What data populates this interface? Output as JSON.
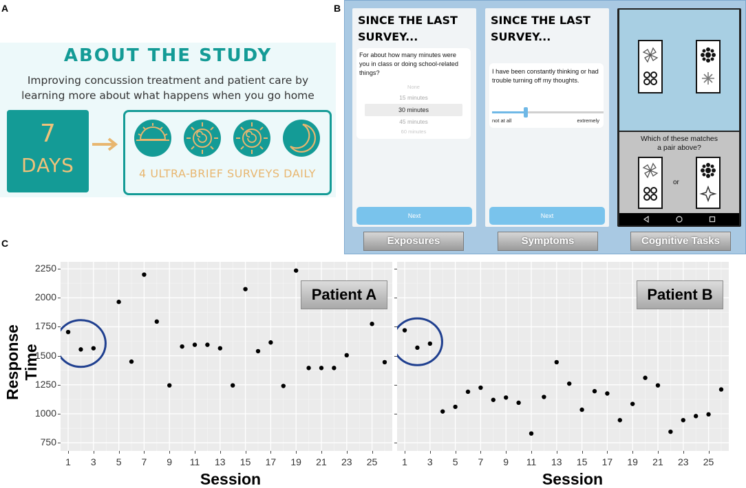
{
  "panel_letters": {
    "a": "A",
    "b": "B",
    "c": "C"
  },
  "panel_a": {
    "title": "ABOUT THE STUDY",
    "subtitle_line1": "Improving concussion treatment and patient care by",
    "subtitle_line2": "learning more about what happens when you go home",
    "days_number": "7",
    "days_word": "DAYS",
    "surveys_label": "4 ULTRA-BRIEF SURVEYS DAILY",
    "icons": [
      "sunrise-icon",
      "sun-icon",
      "sun-icon",
      "moon-icon"
    ],
    "colors": {
      "teal": "#149b96",
      "gold": "#e8b66f",
      "background": "#edf9fa"
    }
  },
  "panel_b": {
    "exposures_screen": {
      "heading_line1": "SINCE THE LAST",
      "heading_line2": "SURVEY...",
      "question": "For about how many minutes were you in class or doing school-related things?",
      "picker_options": [
        "None",
        "15 minutes",
        "30 minutes",
        "45 minutes",
        "60 minutes"
      ],
      "selected_option": "30 minutes",
      "next_label": "Next"
    },
    "symptoms_screen": {
      "heading_line1": "SINCE THE LAST",
      "heading_line2": "SURVEY...",
      "question": "I have been constantly thinking or had trouble turning off my thoughts.",
      "slider_min_label": "not at all",
      "slider_max_label": "extremely",
      "slider_value": 0.3,
      "next_label": "Next"
    },
    "cognitive_screen": {
      "question_line1": "Which of these matches",
      "question_line2": "a pair above?",
      "or_label": "or"
    },
    "labels": {
      "exposures": "Exposures",
      "symptoms": "Symptoms",
      "cognitive": "Cognitive Tasks"
    }
  },
  "chart_data": [
    {
      "type": "scatter",
      "title": "Patient A",
      "xlabel": "Session",
      "ylabel": "Response Time",
      "x_ticks": [
        1,
        3,
        5,
        7,
        9,
        11,
        13,
        15,
        17,
        19,
        21,
        23,
        25
      ],
      "y_ticks": [
        750,
        1000,
        1250,
        1500,
        1750,
        2000,
        2250
      ],
      "ylim": [
        680,
        2310
      ],
      "xlim": [
        0.4,
        26.6
      ],
      "grid": true,
      "points": [
        {
          "x": 1,
          "y": 1705
        },
        {
          "x": 2,
          "y": 1555
        },
        {
          "x": 3,
          "y": 1565
        },
        {
          "x": 5,
          "y": 1965
        },
        {
          "x": 6,
          "y": 1450
        },
        {
          "x": 7,
          "y": 2200
        },
        {
          "x": 8,
          "y": 1795
        },
        {
          "x": 9,
          "y": 1245
        },
        {
          "x": 10,
          "y": 1580
        },
        {
          "x": 11,
          "y": 1595
        },
        {
          "x": 12,
          "y": 1595
        },
        {
          "x": 13,
          "y": 1565
        },
        {
          "x": 14,
          "y": 1245
        },
        {
          "x": 15,
          "y": 2075
        },
        {
          "x": 16,
          "y": 1540
        },
        {
          "x": 17,
          "y": 1615
        },
        {
          "x": 18,
          "y": 1240
        },
        {
          "x": 19,
          "y": 2235
        },
        {
          "x": 20,
          "y": 1395
        },
        {
          "x": 21,
          "y": 1395
        },
        {
          "x": 22,
          "y": 1395
        },
        {
          "x": 23,
          "y": 1505
        },
        {
          "x": 25,
          "y": 1775
        },
        {
          "x": 26,
          "y": 1445
        }
      ],
      "highlight_sessions": [
        1,
        2,
        3
      ]
    },
    {
      "type": "scatter",
      "title": "Patient B",
      "xlabel": "Session",
      "ylabel": "",
      "x_ticks": [
        1,
        3,
        5,
        7,
        9,
        11,
        13,
        15,
        17,
        19,
        21,
        23,
        25
      ],
      "y_ticks": [
        750,
        1000,
        1250,
        1500,
        1750,
        2000,
        2250
      ],
      "ylim": [
        680,
        2310
      ],
      "xlim": [
        0.4,
        26.6
      ],
      "grid": true,
      "points": [
        {
          "x": 1,
          "y": 1720
        },
        {
          "x": 2,
          "y": 1570
        },
        {
          "x": 3,
          "y": 1605
        },
        {
          "x": 4,
          "y": 1020
        },
        {
          "x": 5,
          "y": 1060
        },
        {
          "x": 6,
          "y": 1190
        },
        {
          "x": 7,
          "y": 1225
        },
        {
          "x": 8,
          "y": 1120
        },
        {
          "x": 9,
          "y": 1140
        },
        {
          "x": 10,
          "y": 1095
        },
        {
          "x": 11,
          "y": 830
        },
        {
          "x": 12,
          "y": 1145
        },
        {
          "x": 13,
          "y": 1445
        },
        {
          "x": 14,
          "y": 1260
        },
        {
          "x": 15,
          "y": 1035
        },
        {
          "x": 16,
          "y": 1195
        },
        {
          "x": 17,
          "y": 1175
        },
        {
          "x": 18,
          "y": 945
        },
        {
          "x": 19,
          "y": 1085
        },
        {
          "x": 20,
          "y": 1310
        },
        {
          "x": 21,
          "y": 1245
        },
        {
          "x": 22,
          "y": 845
        },
        {
          "x": 23,
          "y": 945
        },
        {
          "x": 24,
          "y": 980
        },
        {
          "x": 25,
          "y": 995
        },
        {
          "x": 26,
          "y": 1210
        }
      ],
      "highlight_sessions": [
        1,
        2,
        3
      ]
    }
  ]
}
